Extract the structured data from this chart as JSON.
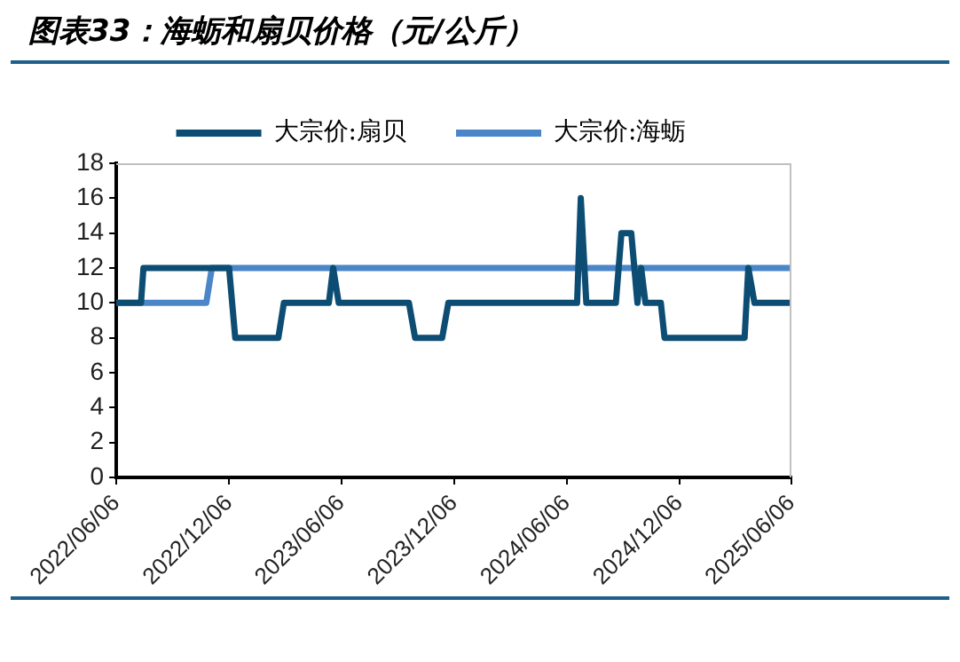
{
  "chart_data": {
    "type": "line",
    "title": "图表33：海蛎和扇贝价格（元/公斤）",
    "series": [
      {
        "name": "大宗价:扇贝",
        "color": "#0d4d73",
        "x": [
          "2022-06-06",
          "2022-07-16",
          "2022-07-20",
          "2022-12-06",
          "2022-12-16",
          "2023-02-24",
          "2023-03-05",
          "2023-05-17",
          "2023-05-24",
          "2023-06-02",
          "2023-09-24",
          "2023-10-04",
          "2023-11-17",
          "2023-11-27",
          "2024-06-23",
          "2024-06-29",
          "2024-07-08",
          "2024-08-25",
          "2024-09-03",
          "2024-09-19",
          "2024-09-29",
          "2024-10-05",
          "2024-10-12",
          "2024-11-06",
          "2024-11-12",
          "2025-03-22",
          "2025-03-28",
          "2025-04-07",
          "2025-06-06"
        ],
        "values": [
          10,
          10,
          12,
          12,
          8,
          8,
          10,
          10,
          12,
          10,
          10,
          8,
          8,
          10,
          10,
          16,
          10,
          10,
          14,
          14,
          10,
          12,
          10,
          10,
          8,
          8,
          12,
          10,
          10
        ]
      },
      {
        "name": "大宗价:海蛎",
        "color": "#4a86c8",
        "x": [
          "2022-06-06",
          "2022-10-30",
          "2022-11-08",
          "2025-06-06"
        ],
        "values": [
          10,
          10,
          12,
          12
        ]
      }
    ],
    "xlim": [
      "2022-06-06",
      "2025-06-06"
    ],
    "xticks": [
      {
        "value": "2022-06-06",
        "label": "2022/06/06"
      },
      {
        "value": "2022-12-06",
        "label": "2022/12/06"
      },
      {
        "value": "2023-06-06",
        "label": "2023/06/06"
      },
      {
        "value": "2023-12-06",
        "label": "2023/12/06"
      },
      {
        "value": "2024-06-06",
        "label": "2024/06/06"
      },
      {
        "value": "2024-12-06",
        "label": "2024/12/06"
      },
      {
        "value": "2025-06-06",
        "label": "2025/06/06"
      }
    ],
    "ylim": [
      0,
      18
    ],
    "yticks": [
      0,
      2,
      4,
      6,
      8,
      10,
      12,
      14,
      16,
      18
    ],
    "grid": false,
    "legend": "top",
    "marker": "none",
    "line_style": "solid"
  }
}
